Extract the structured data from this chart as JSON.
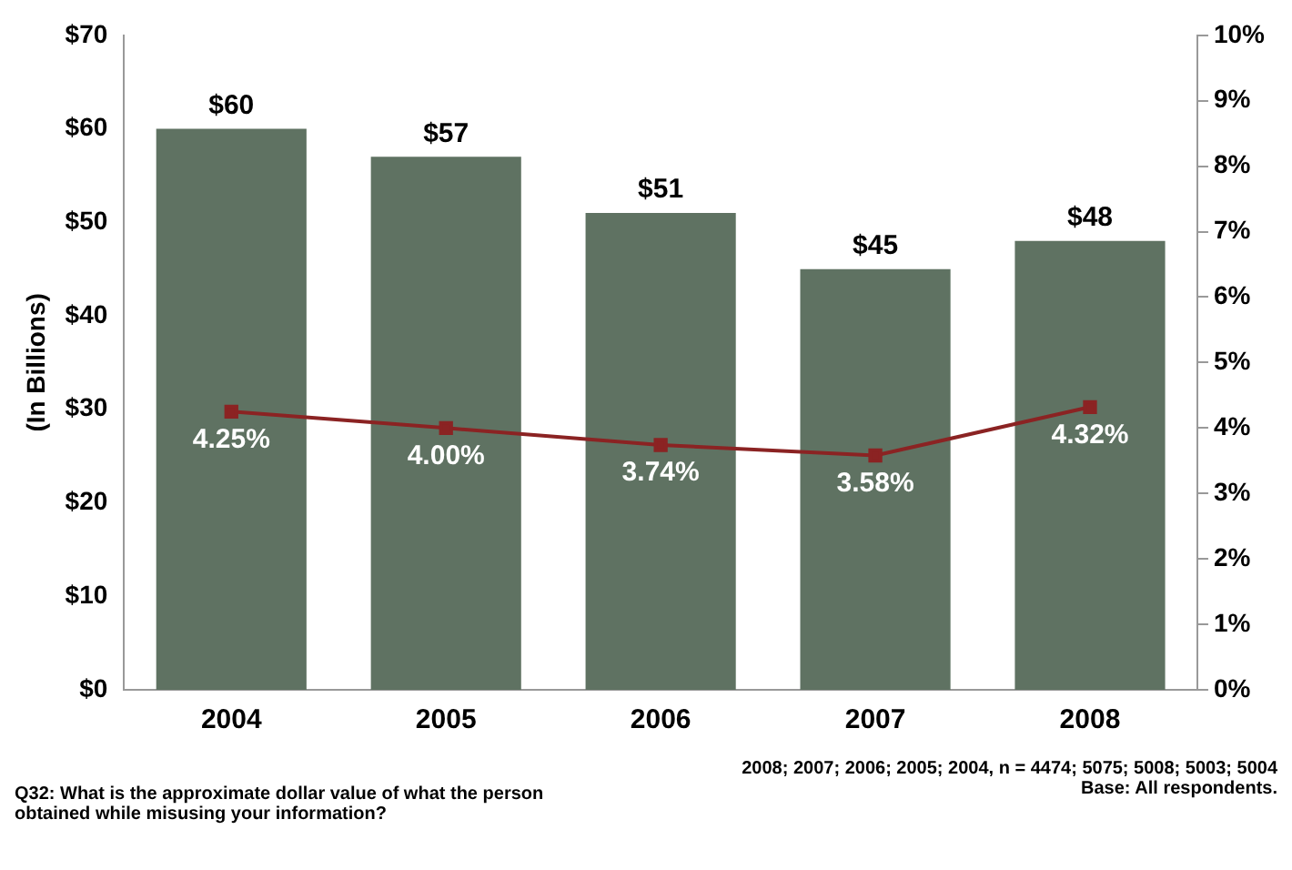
{
  "chart_data": {
    "type": "bar",
    "ylabel": "(In Billions)",
    "categories": [
      "2004",
      "2005",
      "2006",
      "2007",
      "2008"
    ],
    "series": [
      {
        "color": "#5f7262",
        "values": [
          60,
          57,
          51,
          45,
          48
        ],
        "value_labels": [
          "$60",
          "$57",
          "$51",
          "$45",
          "$48"
        ]
      },
      {
        "type": "line",
        "axis": "y2",
        "color": "#8b2323",
        "marker": "square",
        "values": [
          4.25,
          4.0,
          3.74,
          3.58,
          4.32
        ],
        "value_labels": [
          "4.25%",
          "4.00%",
          "3.74%",
          "3.58%",
          "4.32%"
        ]
      }
    ],
    "ylim": [
      0,
      70
    ],
    "yticks": [
      {
        "value": 0,
        "label": "$0"
      },
      {
        "value": 10,
        "label": "$10"
      },
      {
        "value": 20,
        "label": "$20"
      },
      {
        "value": 30,
        "label": "$30"
      },
      {
        "value": 40,
        "label": "$40"
      },
      {
        "value": 50,
        "label": "$50"
      },
      {
        "value": 60,
        "label": "$60"
      },
      {
        "value": 70,
        "label": "$70"
      }
    ],
    "y2lim": [
      0,
      10
    ],
    "y2ticks": [
      {
        "value": 0,
        "label": "0%"
      },
      {
        "value": 1,
        "label": "1%"
      },
      {
        "value": 2,
        "label": "2%"
      },
      {
        "value": 3,
        "label": "3%"
      },
      {
        "value": 4,
        "label": "4%"
      },
      {
        "value": 5,
        "label": "5%"
      },
      {
        "value": 6,
        "label": "6%"
      },
      {
        "value": 7,
        "label": "7%"
      },
      {
        "value": 8,
        "label": "8%"
      },
      {
        "value": 9,
        "label": "9%"
      },
      {
        "value": 10,
        "label": "10%"
      }
    ],
    "grid": false,
    "legend": false,
    "annotations": [
      "Q32: What is the approximate dollar value of what the person obtained while misusing your information?",
      "2008; 2007; 2006; 2005; 2004, n = 4474; 5075; 5008; 5003; 5004",
      "Base: All respondents."
    ]
  }
}
